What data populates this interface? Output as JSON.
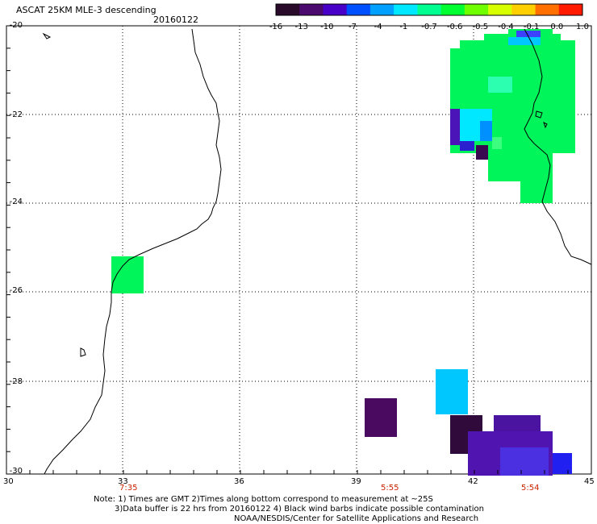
{
  "header": {
    "title": "ASCAT 25KM MLE-3 descending",
    "date": "20160122"
  },
  "colorbar": {
    "labels": [
      "-16",
      "-13",
      "-10",
      "-7",
      "-4",
      "-1",
      "-0.7",
      "-0.6",
      "-0.5",
      "-0.4",
      "-0.1",
      "0.0",
      "1.0"
    ],
    "colors": [
      "#2a0a2a",
      "#4b0a6e",
      "#4800c8",
      "#0050ff",
      "#00a0ff",
      "#00e8ff",
      "#00ff90",
      "#00ff30",
      "#70ff00",
      "#d8ff00",
      "#ffd000",
      "#ff7000",
      "#ff1a00"
    ]
  },
  "axes": {
    "lat_labels": [
      "-20",
      "-22",
      "-24",
      "-26",
      "-28",
      "-30"
    ],
    "lon_labels": [
      "30",
      "33",
      "36",
      "39",
      "42",
      "45"
    ],
    "lat_range": [
      -30,
      -20
    ],
    "lon_range": [
      30,
      45
    ]
  },
  "time_labels": [
    {
      "text": "7:35",
      "lon": 33.2
    },
    {
      "text": "5:55",
      "lon": 40.0
    },
    {
      "text": "5:54",
      "lon": 43.2
    }
  ],
  "notes": {
    "line1": "Note: 1) Times are GMT 2)Times along bottom correspond to measurement at ~25S",
    "line2": "3)Data buffer is 22 hrs from 20160122 4) Black wind barbs indicate possible contamination",
    "line3": "NOAA/NESDIS/Center for Satellite Applications and Research"
  }
}
